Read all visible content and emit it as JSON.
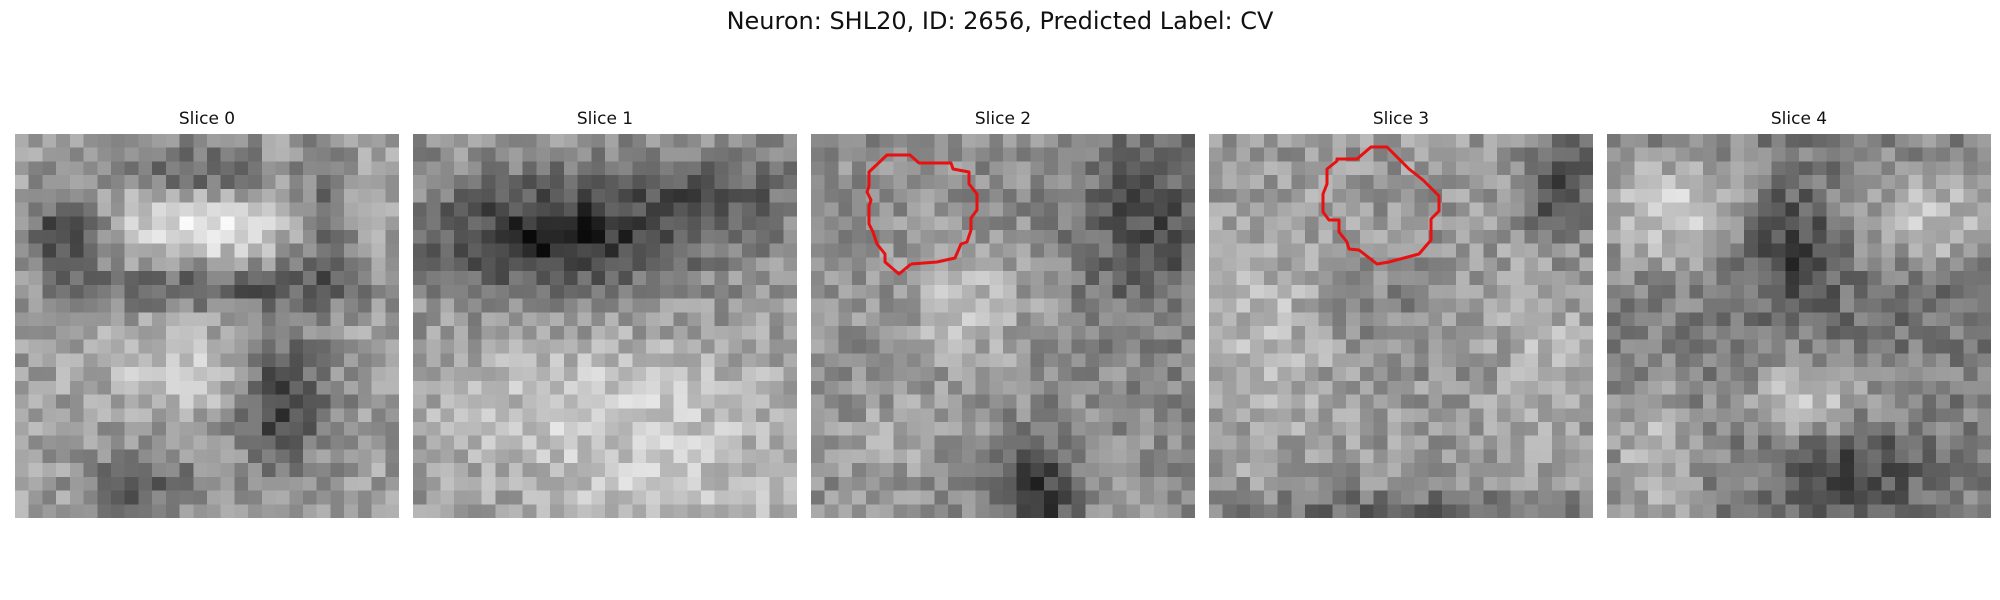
{
  "figure": {
    "title": "Neuron: SHL20, ID: 2656, Predicted Label: CV"
  },
  "panels": [
    {
      "title": "Slice 0",
      "has_contour": false
    },
    {
      "title": "Slice 1",
      "has_contour": false
    },
    {
      "title": "Slice 2",
      "has_contour": true
    },
    {
      "title": "Slice 3",
      "has_contour": true
    },
    {
      "title": "Slice 4",
      "has_contour": false
    }
  ],
  "colors": {
    "contour": "#e81010",
    "background": "#ffffff",
    "colormap": "grayscale"
  }
}
